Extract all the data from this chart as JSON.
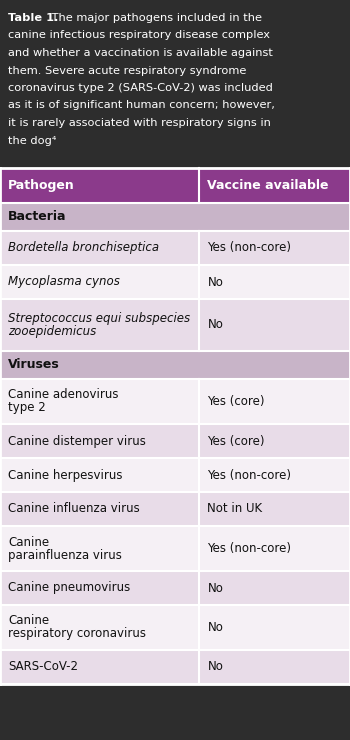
{
  "title_bold": "Table 1.",
  "title_rest": " The major pathogens included in the canine infectious respiratory disease complex and whether a vaccination is available against them. Severe acute respiratory syndrome coronavirus type 2 (SARS-CoV-2) was included as it is of significant human concern; however, it is rarely associated with respiratory signs in the dog⁴",
  "header": [
    "Pathogen",
    "Vaccine available"
  ],
  "col_split": 0.57,
  "title_bg": "#2d2d2d",
  "header_bg": "#8b3a8b",
  "section_bg": "#c8b4c8",
  "row_alt1": "#e8dce8",
  "row_alt2": "#f5f0f5",
  "border_color": "#ffffff",
  "title_text_color": "#ffffff",
  "header_text_color": "#ffffff",
  "section_text_color": "#000000",
  "row_text_color": "#000000",
  "rows": [
    {
      "type": "section",
      "col1": "Bacteria",
      "col2": ""
    },
    {
      "type": "data",
      "col1": "Bordetella bronchiseptica",
      "col2": "Yes (non-core)",
      "italic": true
    },
    {
      "type": "data",
      "col1": "Mycoplasma cynos",
      "col2": "No",
      "italic": true
    },
    {
      "type": "data",
      "col1": "Streptococcus equi subspecies zooepidemicus",
      "col2": "No",
      "italic": true
    },
    {
      "type": "section",
      "col1": "Viruses",
      "col2": ""
    },
    {
      "type": "data",
      "col1": "Canine adenovirus type 2",
      "col2": "Yes (core)",
      "italic": false
    },
    {
      "type": "data",
      "col1": "Canine distemper virus",
      "col2": "Yes (core)",
      "italic": false
    },
    {
      "type": "data",
      "col1": "Canine herpesvirus",
      "col2": "Yes (non-core)",
      "italic": false
    },
    {
      "type": "data",
      "col1": "Canine influenza virus",
      "col2": "Not in UK",
      "italic": false
    },
    {
      "type": "data",
      "col1": "Canine parainfluenza virus",
      "col2": "Yes (non-core)",
      "italic": false
    },
    {
      "type": "data",
      "col1": "Canine pneumovirus",
      "col2": "No",
      "italic": false
    },
    {
      "type": "data",
      "col1": "Canine respiratory coronavirus",
      "col2": "No",
      "italic": false
    },
    {
      "type": "data",
      "col1": "SARS-CoV-2",
      "col2": "No",
      "italic": false
    }
  ]
}
